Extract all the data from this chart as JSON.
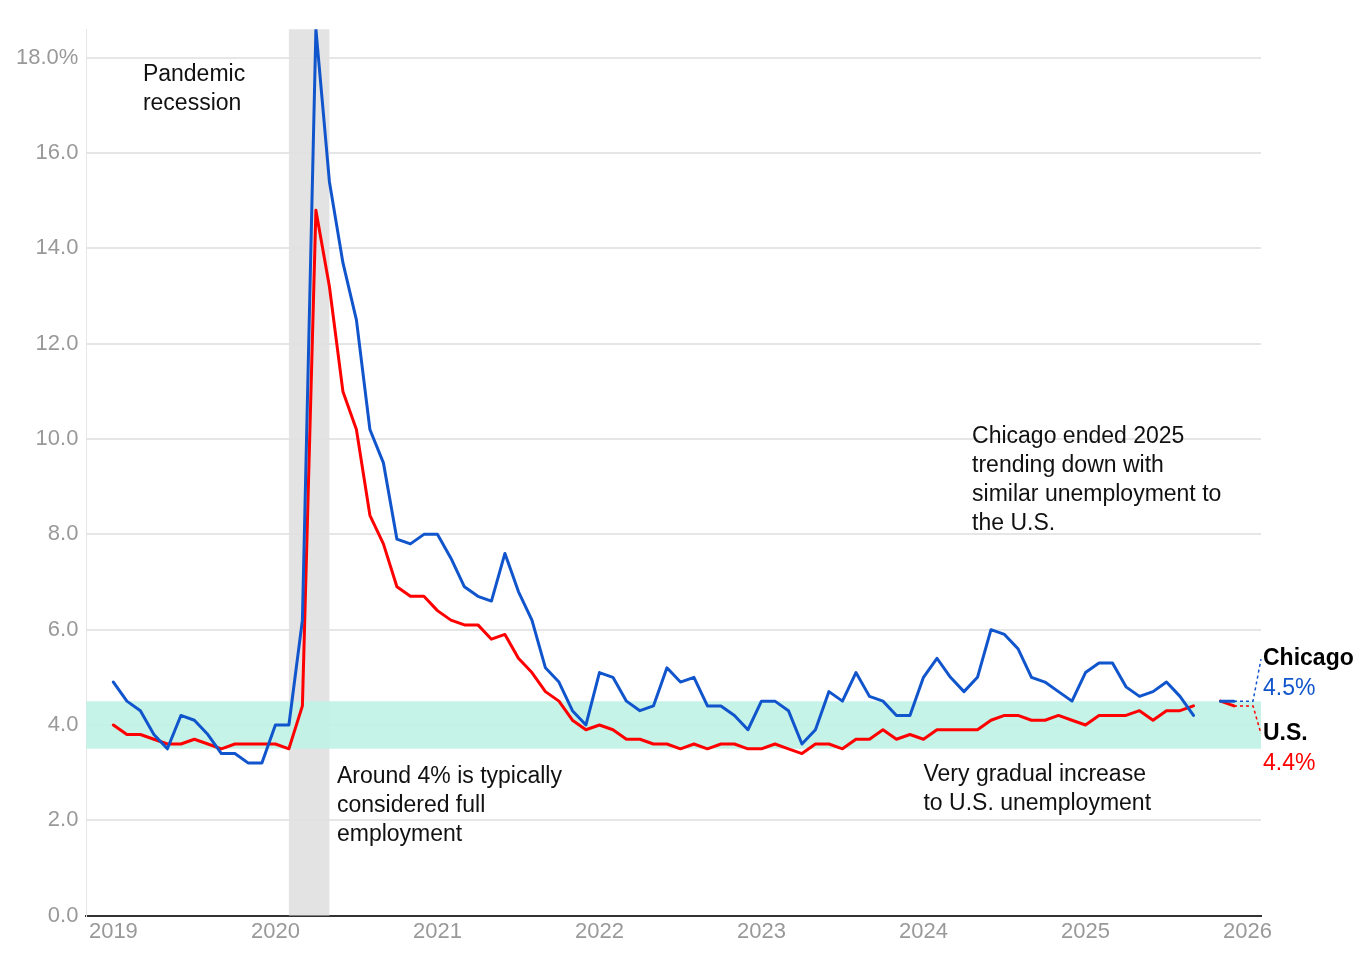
{
  "chart_data": {
    "type": "line",
    "x": [
      "2019-01",
      "2019-02",
      "2019-03",
      "2019-04",
      "2019-05",
      "2019-06",
      "2019-07",
      "2019-08",
      "2019-09",
      "2019-10",
      "2019-11",
      "2019-12",
      "2020-01",
      "2020-02",
      "2020-03",
      "2020-04",
      "2020-05",
      "2020-06",
      "2020-07",
      "2020-08",
      "2020-09",
      "2020-10",
      "2020-11",
      "2020-12",
      "2021-01",
      "2021-02",
      "2021-03",
      "2021-04",
      "2021-05",
      "2021-06",
      "2021-07",
      "2021-08",
      "2021-09",
      "2021-10",
      "2021-11",
      "2021-12",
      "2022-01",
      "2022-02",
      "2022-03",
      "2022-04",
      "2022-05",
      "2022-06",
      "2022-07",
      "2022-08",
      "2022-09",
      "2022-10",
      "2022-11",
      "2022-12",
      "2023-01",
      "2023-02",
      "2023-03",
      "2023-04",
      "2023-05",
      "2023-06",
      "2023-07",
      "2023-08",
      "2023-09",
      "2023-10",
      "2023-11",
      "2023-12",
      "2024-01",
      "2024-02",
      "2024-03",
      "2024-04",
      "2024-05",
      "2024-06",
      "2024-07",
      "2024-08",
      "2024-09",
      "2024-10",
      "2024-11",
      "2024-12",
      "2025-01",
      "2025-02",
      "2025-03",
      "2025-04",
      "2025-05",
      "2025-06",
      "2025-07",
      "2025-08",
      "2025-09",
      "2025-10",
      "2025-11",
      "2025-12"
    ],
    "series": [
      {
        "name": "Chicago",
        "color": "#1155cc",
        "values": [
          4.9,
          4.5,
          4.3,
          3.8,
          3.5,
          4.2,
          4.1,
          3.8,
          3.4,
          3.4,
          3.2,
          3.2,
          4.0,
          4.0,
          6.2,
          18.6,
          15.4,
          13.7,
          12.5,
          10.2,
          9.5,
          7.9,
          7.8,
          8.0,
          8.0,
          7.5,
          6.9,
          6.7,
          6.6,
          7.6,
          6.8,
          6.2,
          5.2,
          4.9,
          4.3,
          4.0,
          5.1,
          5.0,
          4.5,
          4.3,
          4.4,
          5.2,
          4.9,
          5.0,
          4.4,
          4.4,
          4.2,
          3.9,
          4.5,
          4.5,
          4.3,
          3.6,
          3.9,
          4.7,
          4.5,
          5.1,
          4.6,
          4.5,
          4.2,
          4.2,
          5.0,
          5.4,
          5.0,
          4.7,
          5.0,
          6.0,
          5.9,
          5.6,
          5.0,
          4.9,
          4.7,
          4.5,
          5.1,
          5.3,
          5.3,
          4.8,
          4.6,
          4.7,
          4.9,
          4.6,
          4.2,
          null,
          4.5,
          4.5
        ],
        "value_labels": [
          null,
          null,
          null,
          null,
          null,
          null,
          null,
          null,
          null,
          null,
          null,
          null,
          null,
          null,
          null,
          null,
          null,
          null,
          null,
          null,
          null,
          null,
          null,
          null,
          null,
          null,
          null,
          null,
          null,
          null,
          null,
          null,
          null,
          null,
          null,
          null,
          null,
          null,
          null,
          null,
          null,
          null,
          null,
          null,
          null,
          null,
          null,
          null,
          null,
          null,
          null,
          null,
          null,
          null,
          null,
          null,
          null,
          null,
          null,
          null,
          null,
          null,
          null,
          null,
          null,
          null,
          null,
          null,
          null,
          null,
          null,
          null,
          null,
          null,
          null,
          null,
          null,
          null,
          null,
          null,
          null,
          null,
          null,
          "4.5%"
        ]
      },
      {
        "name": "U.S.",
        "color": "#ff0000",
        "values": [
          4.0,
          3.8,
          3.8,
          3.7,
          3.6,
          3.6,
          3.7,
          3.6,
          3.5,
          3.6,
          3.6,
          3.6,
          3.6,
          3.5,
          4.4,
          14.8,
          13.2,
          11.0,
          10.2,
          8.4,
          7.8,
          6.9,
          6.7,
          6.7,
          6.4,
          6.2,
          6.1,
          6.1,
          5.8,
          5.9,
          5.4,
          5.1,
          4.7,
          4.5,
          4.1,
          3.9,
          4.0,
          3.9,
          3.7,
          3.7,
          3.6,
          3.6,
          3.5,
          3.6,
          3.5,
          3.6,
          3.6,
          3.5,
          3.5,
          3.6,
          3.5,
          3.4,
          3.6,
          3.6,
          3.5,
          3.7,
          3.7,
          3.9,
          3.7,
          3.8,
          3.7,
          3.9,
          3.9,
          3.9,
          3.9,
          4.1,
          4.2,
          4.2,
          4.1,
          4.1,
          4.2,
          4.1,
          4.0,
          4.2,
          4.2,
          4.2,
          4.3,
          4.1,
          4.3,
          4.3,
          4.4,
          null,
          4.5,
          4.4
        ],
        "value_labels": [
          null,
          null,
          null,
          null,
          null,
          null,
          null,
          null,
          null,
          null,
          null,
          null,
          null,
          null,
          null,
          null,
          null,
          null,
          null,
          null,
          null,
          null,
          null,
          null,
          null,
          null,
          null,
          null,
          null,
          null,
          null,
          null,
          null,
          null,
          null,
          null,
          null,
          null,
          null,
          null,
          null,
          null,
          null,
          null,
          null,
          null,
          null,
          null,
          null,
          null,
          null,
          null,
          null,
          null,
          null,
          null,
          null,
          null,
          null,
          null,
          null,
          null,
          null,
          null,
          null,
          null,
          null,
          null,
          null,
          null,
          null,
          null,
          null,
          null,
          null,
          null,
          null,
          null,
          null,
          null,
          null,
          null,
          null,
          "4.4%"
        ]
      }
    ],
    "xlim": [
      "2018-11",
      "2026-02"
    ],
    "xticks": [
      "2019",
      "2020",
      "2021",
      "2022",
      "2023",
      "2024",
      "2025",
      "2026"
    ],
    "ylim": [
      0,
      18.6
    ],
    "yticks": [
      {
        "value": 0,
        "label": "0.0"
      },
      {
        "value": 2,
        "label": "2.0"
      },
      {
        "value": 4,
        "label": "4.0"
      },
      {
        "value": 6,
        "label": "6.0"
      },
      {
        "value": 8,
        "label": "8.0"
      },
      {
        "value": 10,
        "label": "10.0"
      },
      {
        "value": 12,
        "label": "12.0"
      },
      {
        "value": 14,
        "label": "14.0"
      },
      {
        "value": 16,
        "label": "16.0"
      },
      {
        "value": 18,
        "label": "18.0%"
      }
    ],
    "grid": "y",
    "legend": false,
    "marker": "none",
    "line_style": "solid",
    "bands": [
      {
        "axis": "x",
        "from": "2020-02",
        "to": "2020-05",
        "label": "Pandemic recession",
        "color": "#e0e0e0"
      },
      {
        "axis": "y",
        "from": 3.5,
        "to": 4.5,
        "label": "Around 4% is typically considered full employment",
        "color": "#bff2e6"
      }
    ],
    "annotations": [
      "Chicago ended 2025 trending down with similar unemployment to the U.S.",
      "Very gradual increase to U.S. unemployment"
    ]
  }
}
